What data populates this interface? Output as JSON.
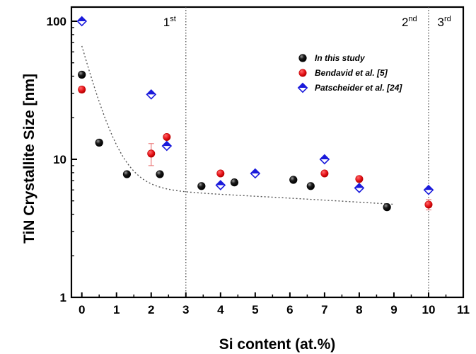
{
  "chart_data": {
    "type": "scatter",
    "xlabel": "Si content (at.%)",
    "ylabel": "TiN Crystallite Size [nm]",
    "xlim": [
      -0.3,
      11
    ],
    "ylim": [
      1,
      100
    ],
    "yscale": "log",
    "x_ticks": [
      "0",
      "1",
      "2",
      "3",
      "4",
      "5",
      "6",
      "7",
      "8",
      "9",
      "10",
      "11"
    ],
    "y_ticks": [
      "1",
      "10",
      "100"
    ],
    "grid": false,
    "legend_position": "top-right",
    "vertical_lines": [
      {
        "x": 3,
        "label_main": "1",
        "label_sup": "st"
      },
      {
        "x": 10,
        "label_main": "2",
        "label_sup": "nd",
        "label_side": "left"
      }
    ],
    "extra_region_label": {
      "label_main": "3",
      "label_sup": "rd",
      "x": 10.5
    },
    "series": [
      {
        "name": "In this study",
        "marker": "black-sphere",
        "color": "#000000",
        "points": [
          {
            "x": 0,
            "y": 41
          },
          {
            "x": 0.5,
            "y": 13.2
          },
          {
            "x": 1.3,
            "y": 7.8
          },
          {
            "x": 2.25,
            "y": 7.8
          },
          {
            "x": 3.45,
            "y": 6.4
          },
          {
            "x": 4.4,
            "y": 6.8
          },
          {
            "x": 6.1,
            "y": 7.1
          },
          {
            "x": 6.6,
            "y": 6.4
          },
          {
            "x": 8.8,
            "y": 4.5
          }
        ]
      },
      {
        "name": "Bendavid et al. [5]",
        "marker": "red-circle",
        "color": "#e8141b",
        "points": [
          {
            "x": 0,
            "y": 32,
            "err": 1.5
          },
          {
            "x": 2,
            "y": 11,
            "err": 2
          },
          {
            "x": 2.45,
            "y": 14.5
          },
          {
            "x": 4,
            "y": 7.9
          },
          {
            "x": 7,
            "y": 7.9
          },
          {
            "x": 8,
            "y": 7.2
          },
          {
            "x": 10,
            "y": 4.7,
            "err": 0.4
          }
        ]
      },
      {
        "name": "Patscheider et al. [24]",
        "marker": "blue-diamond",
        "color": "#1a1adb",
        "points": [
          {
            "x": 0,
            "y": 100
          },
          {
            "x": 2,
            "y": 29.5
          },
          {
            "x": 2.45,
            "y": 12.5
          },
          {
            "x": 4,
            "y": 6.5
          },
          {
            "x": 5,
            "y": 7.9
          },
          {
            "x": 7,
            "y": 10
          },
          {
            "x": 8,
            "y": 6.2
          },
          {
            "x": 10,
            "y": 6
          }
        ]
      }
    ],
    "fit_curve": {
      "style": "dotted",
      "color": "#555555",
      "form": "y = 6.25 + 60*exp(-2.2*x) - 0.17*x",
      "x_range": [
        0,
        9
      ]
    }
  }
}
